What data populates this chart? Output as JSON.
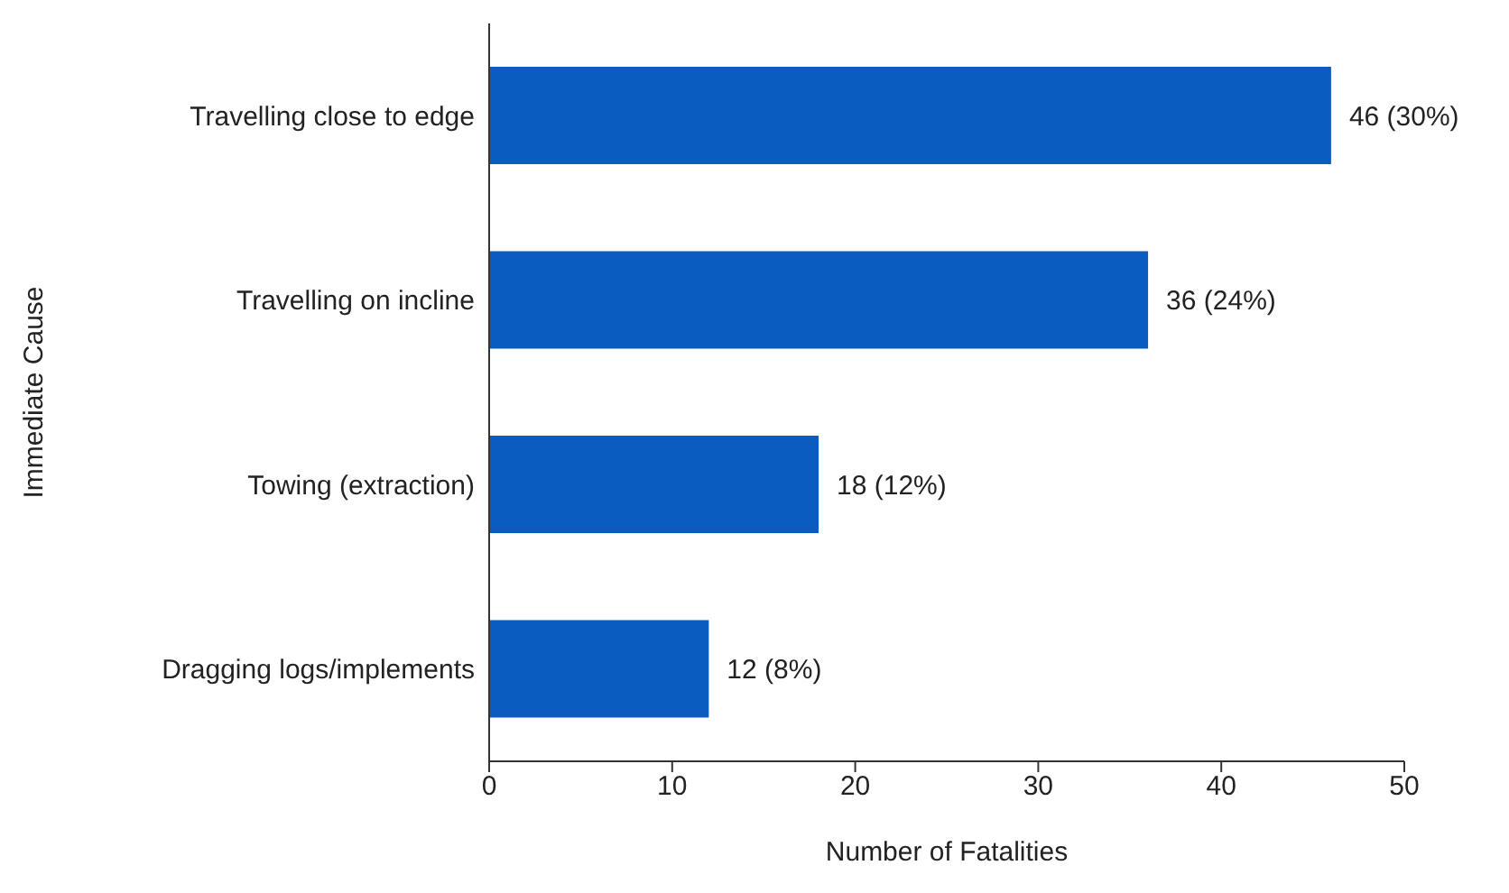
{
  "chart_data": {
    "type": "bar",
    "orientation": "horizontal",
    "xlabel": "Number of Fatalities",
    "ylabel": "Immediate Cause",
    "categories": [
      "Travelling close to edge",
      "Travelling on incline",
      "Towing (extraction)",
      "Dragging logs/implements"
    ],
    "values": [
      46,
      36,
      18,
      12
    ],
    "color": "#0a5cc0",
    "value_labels": [
      "46 (30%)",
      "36 (24%)",
      "18 (12%)",
      "12 (8%)"
    ],
    "xlim": [
      0,
      50
    ],
    "xticks": [
      0,
      10,
      20,
      30,
      40,
      50
    ],
    "grid": false,
    "legend": false
  }
}
